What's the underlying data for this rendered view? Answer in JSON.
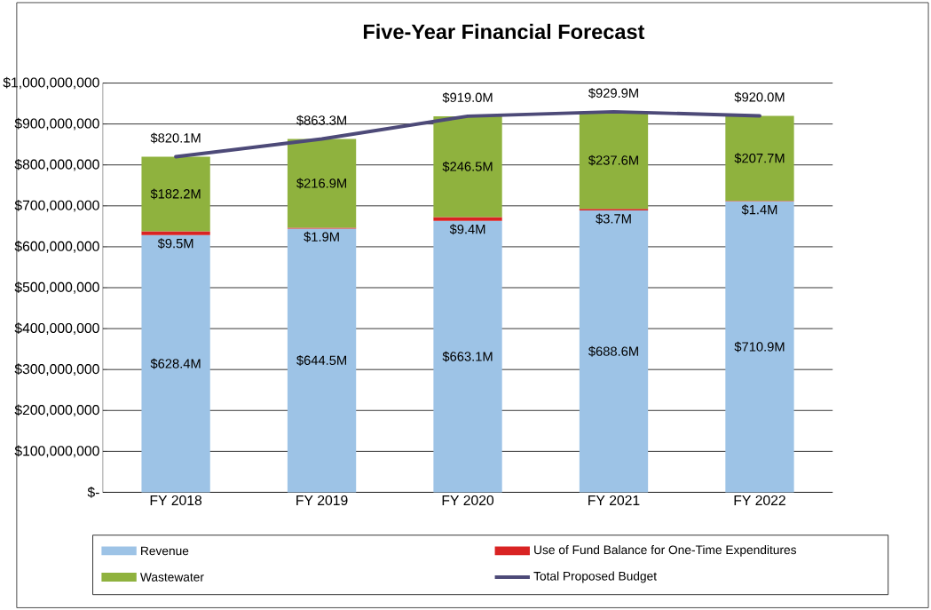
{
  "chart_data": {
    "type": "bar",
    "title": "Five-Year Financial Forecast",
    "stacked": true,
    "categories": [
      "FY 2018",
      "FY 2019",
      "FY 2020",
      "FY 2021",
      "FY 2022"
    ],
    "series": [
      {
        "name": "Revenue",
        "color": "#9dc3e6",
        "values": [
          628400000,
          644500000,
          663100000,
          688600000,
          710900000
        ],
        "value_labels": [
          "$628.4M",
          "$644.5M",
          "$663.1M",
          "$688.6M",
          "$710.9M"
        ]
      },
      {
        "name": "Use of Fund Balance for One-Time Expenditures",
        "color": "#d92323",
        "values": [
          9500000,
          1900000,
          9400000,
          3700000,
          1400000
        ],
        "value_labels": [
          "$9.5M",
          "$1.9M",
          "$9.4M",
          "$3.7M",
          "$1.4M"
        ]
      },
      {
        "name": "Wastewater",
        "color": "#8fb23e",
        "values": [
          182200000,
          216900000,
          246500000,
          237600000,
          207700000
        ],
        "value_labels": [
          "$182.2M",
          "$216.9M",
          "$246.5M",
          "$237.6M",
          "$207.7M"
        ]
      },
      {
        "name": "Total Proposed Budget",
        "type": "line",
        "color": "#4d4a78",
        "values": [
          820100000,
          863300000,
          919000000,
          929900000,
          920000000
        ],
        "value_labels": [
          "$820.1M",
          "$863.3M",
          "$919.0M",
          "$929.9M",
          "$920.0M"
        ]
      }
    ],
    "ylim": [
      0,
      1000000000
    ],
    "yticks": [
      {
        "value": 0,
        "label": "$-"
      },
      {
        "value": 100000000,
        "label": "$100,000,000"
      },
      {
        "value": 200000000,
        "label": "$200,000,000"
      },
      {
        "value": 300000000,
        "label": "$300,000,000"
      },
      {
        "value": 400000000,
        "label": "$400,000,000"
      },
      {
        "value": 500000000,
        "label": "$500,000,000"
      },
      {
        "value": 600000000,
        "label": "$600,000,000"
      },
      {
        "value": 700000000,
        "label": "$700,000,000"
      },
      {
        "value": 800000000,
        "label": "$800,000,000"
      },
      {
        "value": 900000000,
        "label": "$900,000,000"
      },
      {
        "value": 1000000000,
        "label": "$1,000,000,000"
      }
    ],
    "grid": "y",
    "legend": "bottom"
  }
}
